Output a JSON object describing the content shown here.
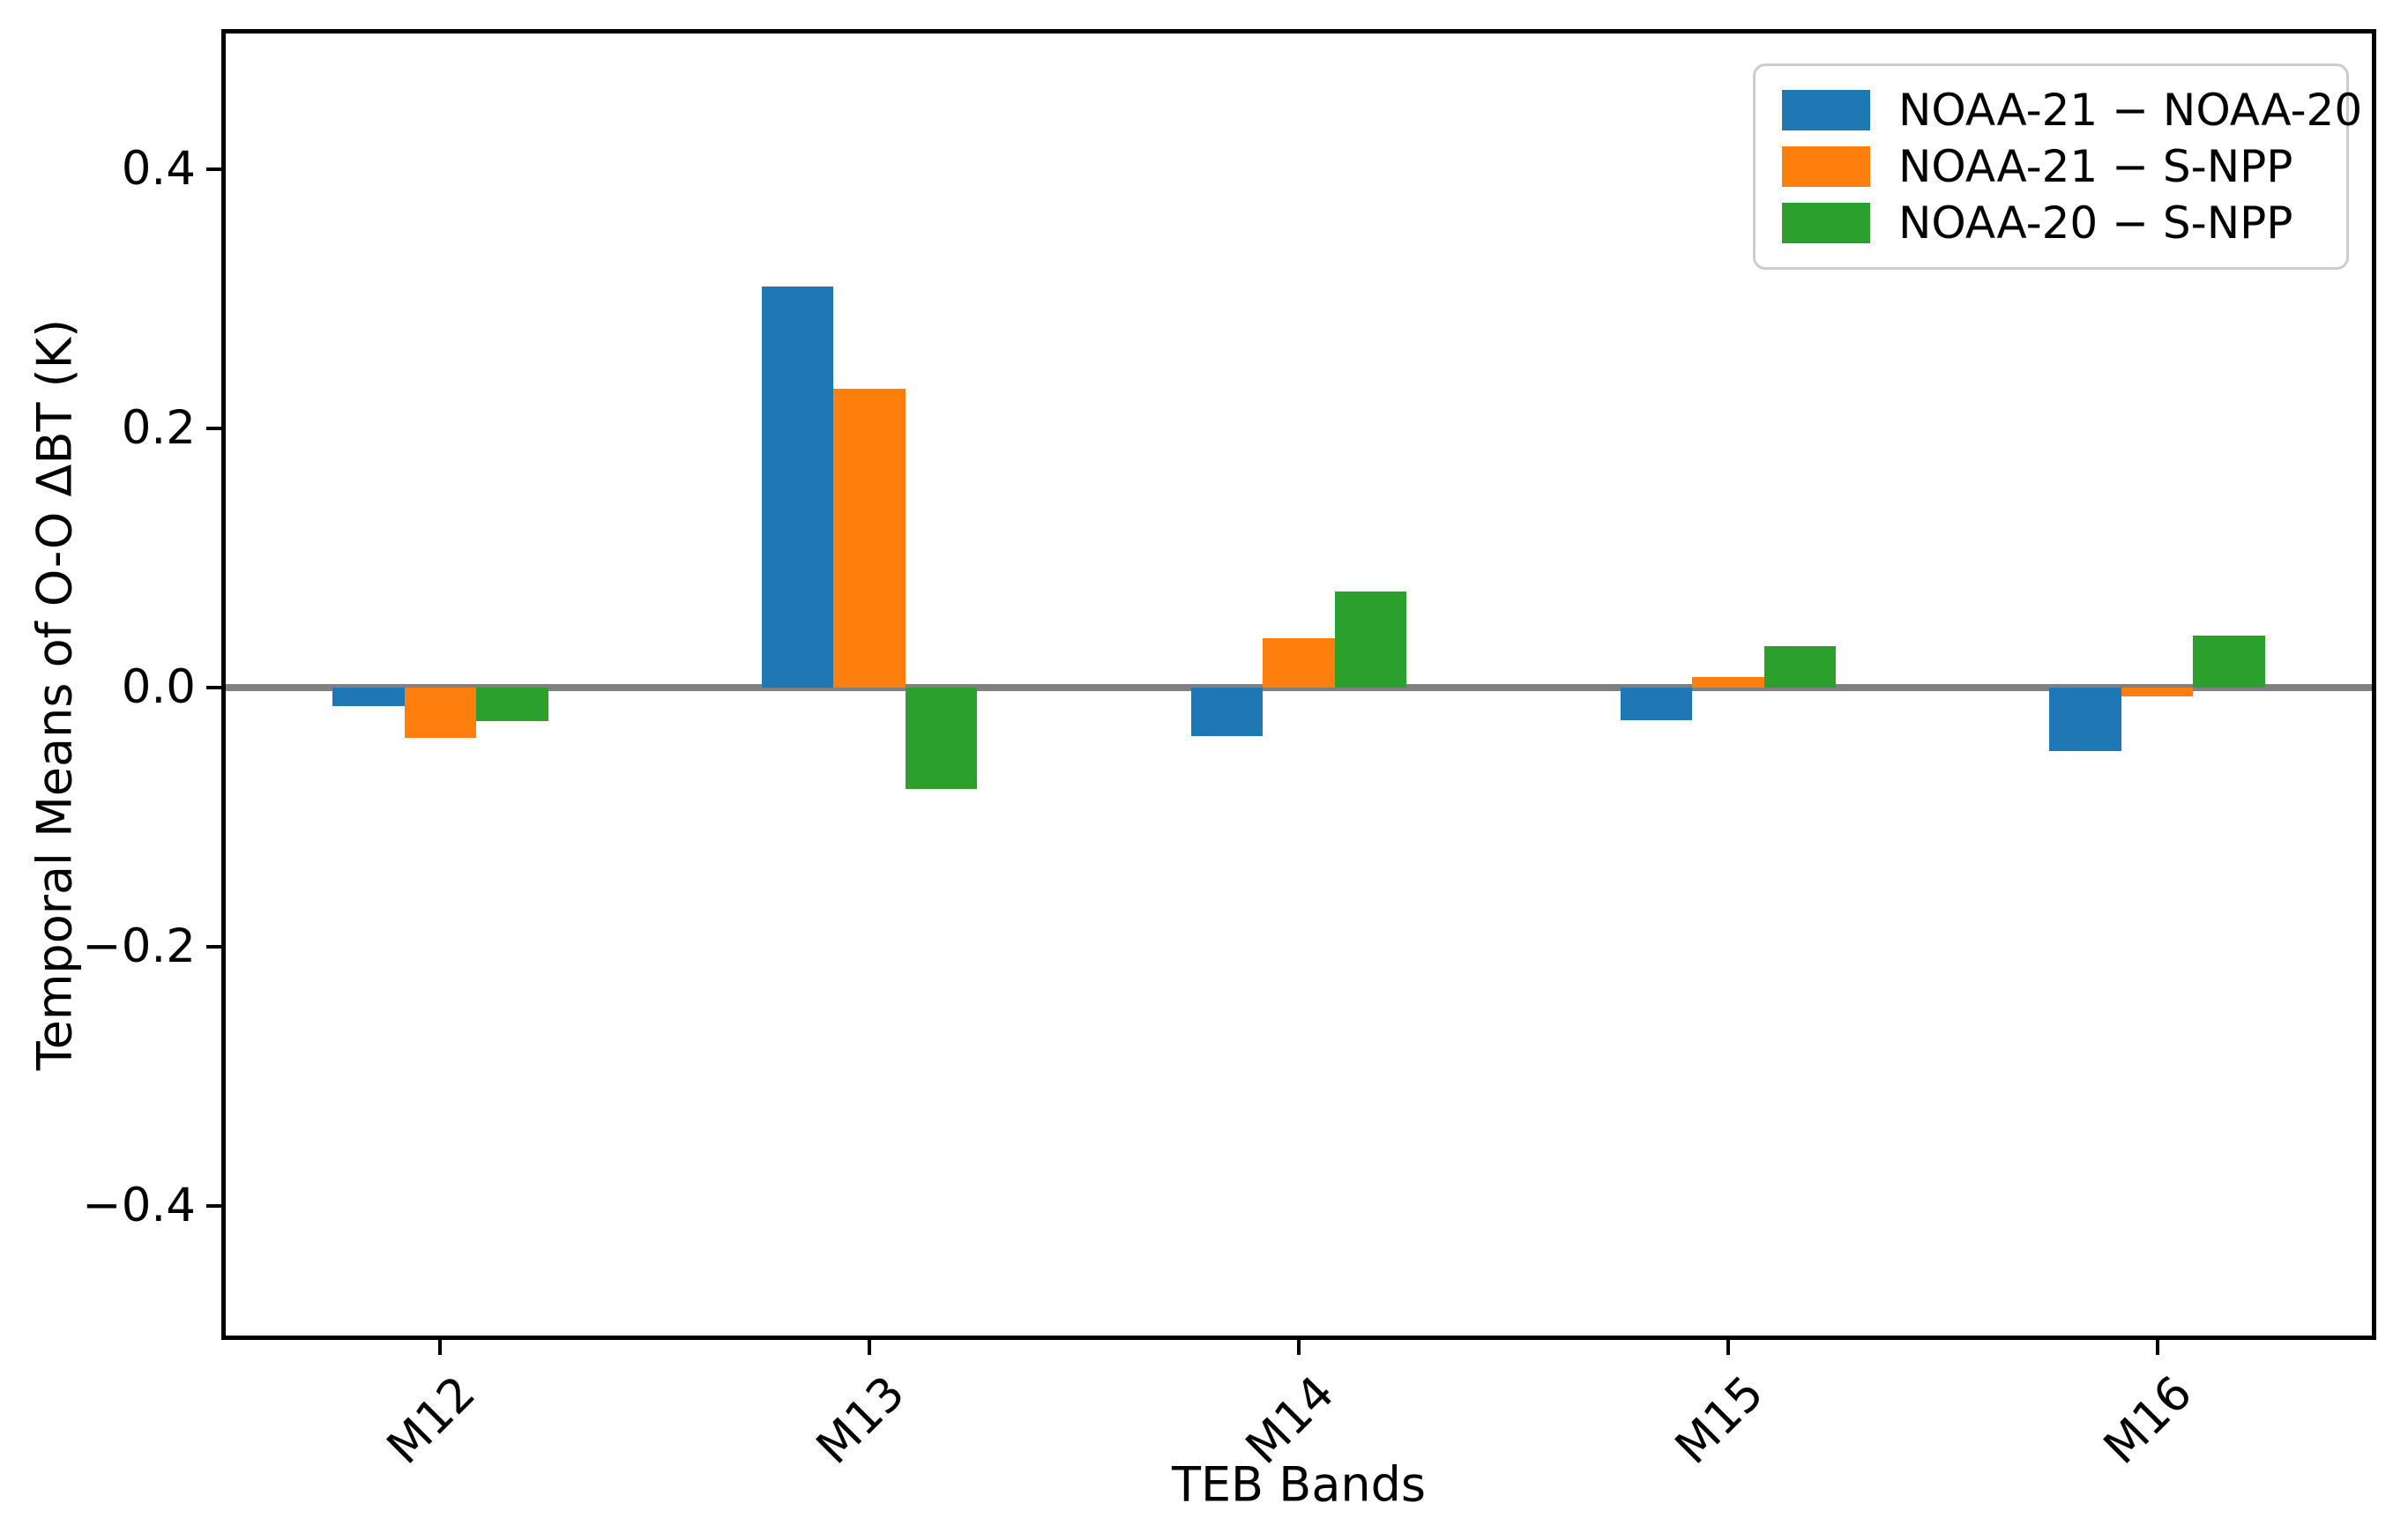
{
  "chart_data": {
    "type": "bar",
    "title": "",
    "xlabel": "TEB Bands",
    "ylabel": "Temporal Means of O-O ΔBT (K)",
    "categories": [
      "M12",
      "M13",
      "M14",
      "M15",
      "M16"
    ],
    "series": [
      {
        "name": "NOAA-21 − NOAA-20",
        "color": "#1f77b4",
        "values": [
          -0.014,
          0.31,
          -0.037,
          -0.025,
          -0.049
        ]
      },
      {
        "name": "NOAA-21 − S-NPP",
        "color": "#ff7f0e",
        "values": [
          -0.039,
          0.231,
          0.038,
          0.008,
          -0.007
        ]
      },
      {
        "name": "NOAA-20 − S-NPP",
        "color": "#2ca02c",
        "values": [
          -0.026,
          -0.078,
          0.074,
          0.032,
          0.04
        ]
      }
    ],
    "ylim": [
      -0.5,
      0.505
    ],
    "yticks": [
      0.4,
      0.2,
      0.0,
      -0.2,
      -0.4
    ],
    "ytick_labels": [
      "0.4",
      "0.2",
      "0.0",
      "−0.2",
      "−0.4"
    ],
    "grid": false,
    "zero_line": true,
    "legend_position": "upper right"
  },
  "colors": {
    "background": "#ffffff",
    "axis": "#000000",
    "zero_line": "#808080",
    "legend_border": "#cccccc"
  }
}
